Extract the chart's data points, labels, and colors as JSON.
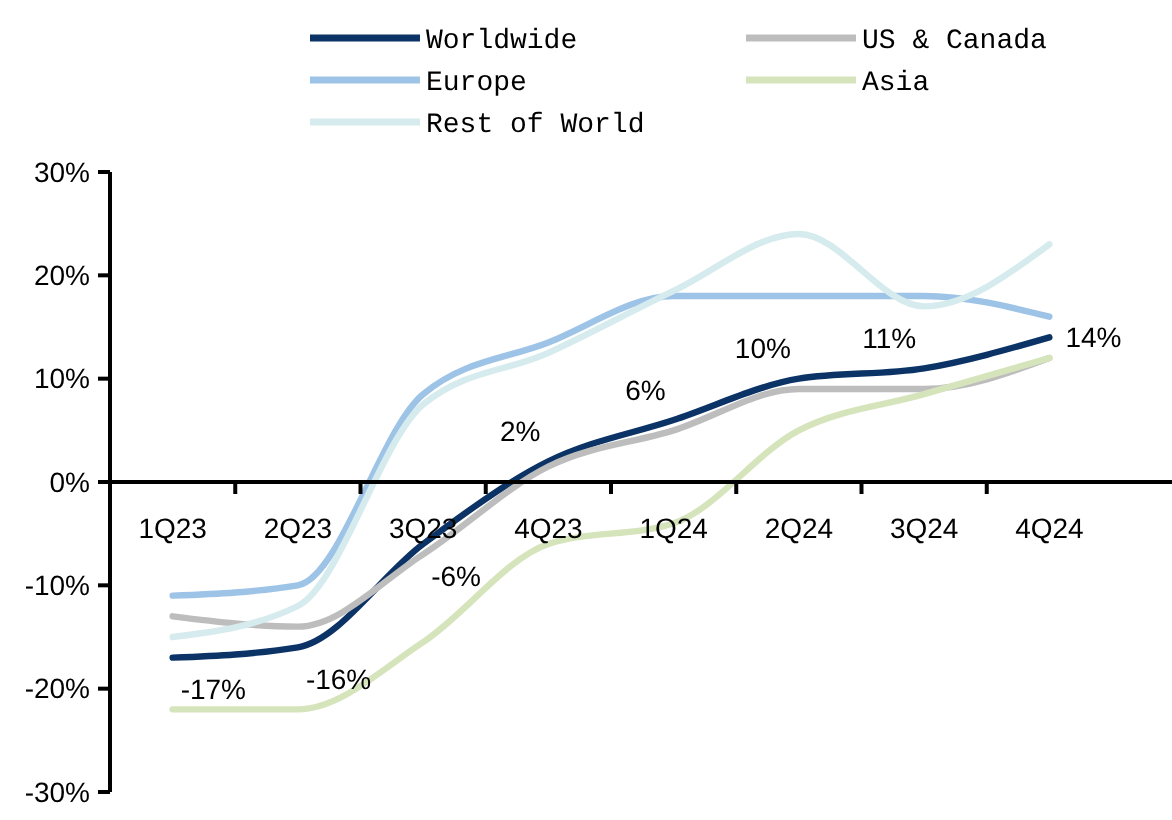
{
  "chart_data": {
    "type": "line",
    "categories": [
      "1Q23",
      "2Q23",
      "3Q23",
      "4Q23",
      "1Q24",
      "2Q24",
      "3Q24",
      "4Q24"
    ],
    "series": [
      {
        "name": "Worldwide",
        "color": "#0c3366",
        "values": [
          -17,
          -16,
          -6,
          2,
          6,
          10,
          11,
          14
        ],
        "value_labels": [
          "-17%",
          "-16%",
          "-6%",
          "2%",
          "6%",
          "10%",
          "11%",
          "14%"
        ]
      },
      {
        "name": "US & Canada",
        "color": "#bdbdbd",
        "values": [
          -13,
          -14,
          -7,
          1.5,
          5,
          9,
          9,
          12
        ]
      },
      {
        "name": "Europe",
        "color": "#9dc3e6",
        "values": [
          -11,
          -10,
          8.5,
          13.5,
          18,
          18,
          18,
          16
        ]
      },
      {
        "name": "Asia",
        "color": "#d6e4bc",
        "values": [
          -22,
          -22,
          -15.5,
          -6,
          -4,
          5,
          8.5,
          12
        ]
      },
      {
        "name": "Rest of World",
        "color": "#d5ebee",
        "values": [
          -15,
          -12,
          7.5,
          12.5,
          18.5,
          24,
          17,
          23
        ]
      }
    ],
    "ylim": [
      -30,
      30
    ],
    "yticks": [
      {
        "value": -30,
        "label": "-30%"
      },
      {
        "value": -20,
        "label": "-20%"
      },
      {
        "value": -10,
        "label": "-10%"
      },
      {
        "value": 0,
        "label": "0%"
      },
      {
        "value": 10,
        "label": "10%"
      },
      {
        "value": 20,
        "label": "20%"
      },
      {
        "value": 30,
        "label": "30%"
      }
    ],
    "legend": "top",
    "grid": false,
    "marker": "none",
    "line_style": "solid"
  }
}
